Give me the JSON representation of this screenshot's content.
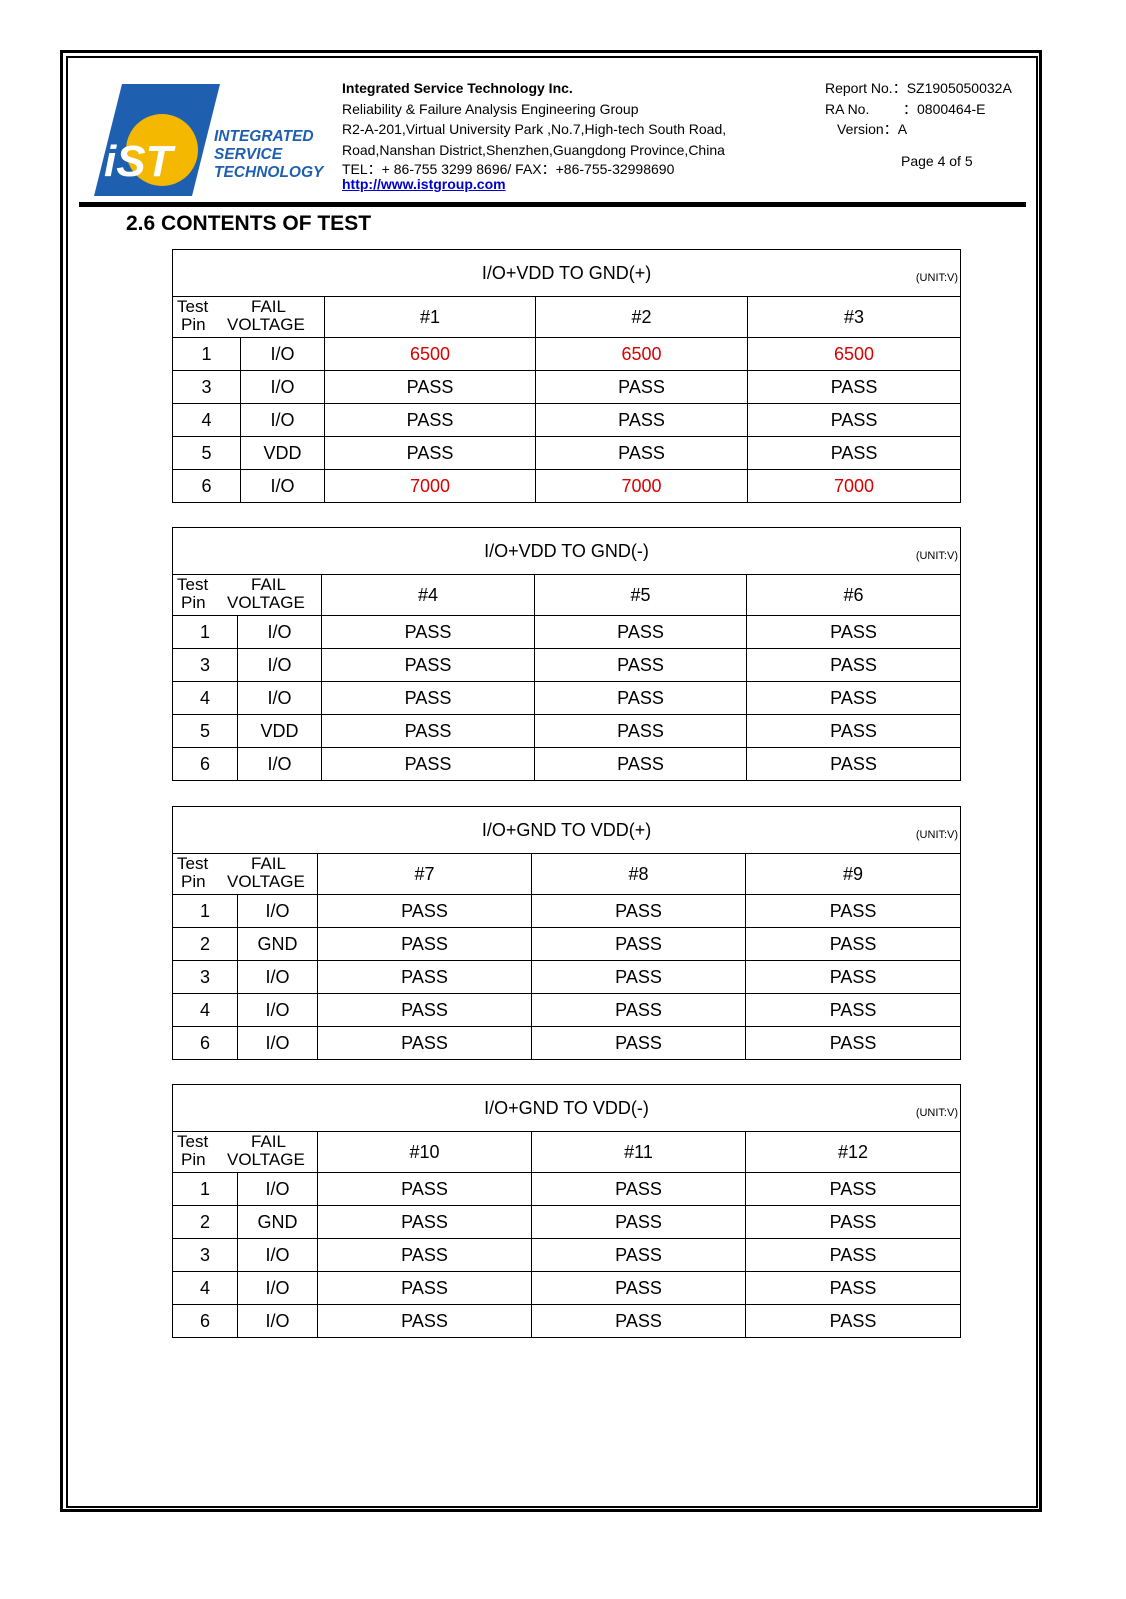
{
  "header": {
    "logo": {
      "mark": "iST",
      "lines": [
        "INTEGRATED",
        "SERVICE",
        "TECHNOLOGY"
      ]
    },
    "company": "Integrated Service Technology Inc.",
    "group": "Reliability & Failure Analysis Engineering Group",
    "address1": "R2-A-201,Virtual University Park ,No.7,High-tech South Road,",
    "address2": "Road,Nanshan District,Shenzhen,Guangdong Province,China",
    "tel": "TEL：+ 86-755 3299 8696/ FAX：+86-755-32998690",
    "url": "http://www.istgroup.com",
    "report_label": "Report No.：",
    "report_no": "SZ1905050032A",
    "ra_label": "RA No.",
    "ra_no": "：0800464-E",
    "version": "Version：A",
    "page": "Page 4 of 5"
  },
  "section_title": "2.6 CONTENTS OF TEST",
  "colors": {
    "fail": "#dd0000"
  },
  "tables": [
    {
      "title": "I/O+VDD TO GND(+)",
      "unit": "(UNIT:V)",
      "h_test": "Test",
      "h_pin": "Pin",
      "h_fail": "FAIL",
      "h_voltage": "VOLTAGE",
      "samples": [
        "#1",
        "#2",
        "#3"
      ],
      "rows": [
        {
          "pin": "1",
          "type": "I/O",
          "values": [
            "6500",
            "6500",
            "6500"
          ],
          "fail": true
        },
        {
          "pin": "3",
          "type": "I/O",
          "values": [
            "PASS",
            "PASS",
            "PASS"
          ]
        },
        {
          "pin": "4",
          "type": "I/O",
          "values": [
            "PASS",
            "PASS",
            "PASS"
          ]
        },
        {
          "pin": "5",
          "type": "VDD",
          "values": [
            "PASS",
            "PASS",
            "PASS"
          ]
        },
        {
          "pin": "6",
          "type": "I/O",
          "values": [
            "7000",
            "7000",
            "7000"
          ],
          "fail": true
        }
      ]
    },
    {
      "title": "I/O+VDD TO GND(-)",
      "unit": "(UNIT:V)",
      "h_test": "Test",
      "h_pin": "Pin",
      "h_fail": "FAIL",
      "h_voltage": "VOLTAGE",
      "samples": [
        "#4",
        "#5",
        "#6"
      ],
      "rows": [
        {
          "pin": "1",
          "type": "I/O",
          "values": [
            "PASS",
            "PASS",
            "PASS"
          ]
        },
        {
          "pin": "3",
          "type": "I/O",
          "values": [
            "PASS",
            "PASS",
            "PASS"
          ]
        },
        {
          "pin": "4",
          "type": "I/O",
          "values": [
            "PASS",
            "PASS",
            "PASS"
          ]
        },
        {
          "pin": "5",
          "type": "VDD",
          "values": [
            "PASS",
            "PASS",
            "PASS"
          ]
        },
        {
          "pin": "6",
          "type": "I/O",
          "values": [
            "PASS",
            "PASS",
            "PASS"
          ]
        }
      ]
    },
    {
      "title": "I/O+GND TO VDD(+)",
      "unit": "(UNIT:V)",
      "h_test": "Test",
      "h_pin": "Pin",
      "h_fail": "FAIL",
      "h_voltage": "VOLTAGE",
      "samples": [
        "#7",
        "#8",
        "#9"
      ],
      "rows": [
        {
          "pin": "1",
          "type": "I/O",
          "values": [
            "PASS",
            "PASS",
            "PASS"
          ]
        },
        {
          "pin": "2",
          "type": "GND",
          "values": [
            "PASS",
            "PASS",
            "PASS"
          ]
        },
        {
          "pin": "3",
          "type": "I/O",
          "values": [
            "PASS",
            "PASS",
            "PASS"
          ]
        },
        {
          "pin": "4",
          "type": "I/O",
          "values": [
            "PASS",
            "PASS",
            "PASS"
          ]
        },
        {
          "pin": "6",
          "type": "I/O",
          "values": [
            "PASS",
            "PASS",
            "PASS"
          ]
        }
      ]
    },
    {
      "title": "I/O+GND TO VDD(-)",
      "unit": "(UNIT:V)",
      "h_test": "Test",
      "h_pin": "Pin",
      "h_fail": "FAIL",
      "h_voltage": "VOLTAGE",
      "samples": [
        "#10",
        "#11",
        "#12"
      ],
      "rows": [
        {
          "pin": "1",
          "type": "I/O",
          "values": [
            "PASS",
            "PASS",
            "PASS"
          ]
        },
        {
          "pin": "2",
          "type": "GND",
          "values": [
            "PASS",
            "PASS",
            "PASS"
          ]
        },
        {
          "pin": "3",
          "type": "I/O",
          "values": [
            "PASS",
            "PASS",
            "PASS"
          ]
        },
        {
          "pin": "4",
          "type": "I/O",
          "values": [
            "PASS",
            "PASS",
            "PASS"
          ]
        },
        {
          "pin": "6",
          "type": "I/O",
          "values": [
            "PASS",
            "PASS",
            "PASS"
          ]
        }
      ]
    }
  ]
}
